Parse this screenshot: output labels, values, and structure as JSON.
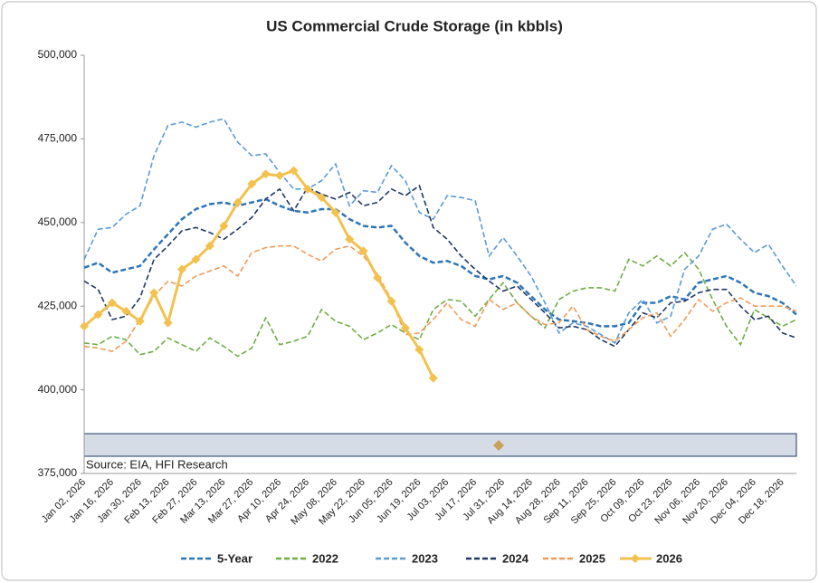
{
  "chart_data": {
    "type": "line",
    "title": "US Commercial Crude Storage (in kbbls)",
    "annotation": "Source: EIA, HFI Research",
    "categories": [
      "Jan 02, 2026",
      null,
      "Jan 16, 2026",
      null,
      "Jan 30, 2026",
      null,
      "Feb 13, 2026",
      null,
      "Feb 27, 2026",
      null,
      "Mar 13, 2026",
      null,
      "Mar 27, 2026",
      null,
      "Apr 10, 2026",
      null,
      "Apr 24, 2026",
      null,
      "May 08, 2026",
      null,
      "May 22, 2026",
      null,
      "Jun 05, 2026",
      null,
      "Jun 19, 2026",
      null,
      "Jul 03, 2026",
      null,
      "Jul 17, 2026",
      null,
      "Jul 31, 2026",
      null,
      "Aug 14, 2026",
      null,
      "Aug 28, 2026",
      null,
      "Sep 11, 2026",
      null,
      "Sep 25, 2026",
      null,
      "Oct 09, 2026",
      null,
      "Oct 23, 2026",
      null,
      "Nov 06, 2026",
      null,
      "Nov 20, 2026",
      null,
      "Dec 04, 2026",
      null,
      "Dec 18, 2026",
      null
    ],
    "ylim": [
      375000,
      500000
    ],
    "yticks": [
      {
        "value": 375000,
        "label": "375,000"
      },
      {
        "value": 400000,
        "label": "400,000"
      },
      {
        "value": 425000,
        "label": "425,000"
      },
      {
        "value": 450000,
        "label": "450,000"
      },
      {
        "value": 475000,
        "label": "475,000"
      },
      {
        "value": 500000,
        "label": "500,000"
      }
    ],
    "series": [
      {
        "name": "5-Year",
        "color": "#2e75b6",
        "dashed": true,
        "values": [
          436500,
          438000,
          435000,
          436000,
          437000,
          442000,
          446500,
          451000,
          454000,
          455500,
          456000,
          455000,
          456000,
          457000,
          455000,
          453500,
          453000,
          454000,
          454000,
          451000,
          449000,
          448500,
          449000,
          444000,
          440000,
          438000,
          438500,
          437000,
          434000,
          433000,
          434000,
          432000,
          428000,
          424000,
          421000,
          420500,
          420000,
          419000,
          419000,
          420000,
          426000,
          426000,
          428000,
          427000,
          432000,
          433000,
          434000,
          432000,
          429000,
          428000,
          426000,
          422500
        ]
      },
      {
        "name": "2022",
        "color": "#70ad47",
        "dashed": true,
        "values": [
          414000,
          413500,
          416000,
          415000,
          410500,
          411500,
          415500,
          413500,
          411500,
          415500,
          413000,
          410000,
          412500,
          421500,
          413500,
          414500,
          416000,
          424000,
          420500,
          419000,
          415000,
          417000,
          419500,
          417000,
          415000,
          424000,
          427000,
          426500,
          422000,
          427000,
          432000,
          426000,
          422000,
          418500,
          427000,
          429500,
          430500,
          430500,
          429500,
          439000,
          437000,
          440000,
          437000,
          441000,
          436000,
          427000,
          419000,
          413500,
          424000,
          421500,
          419000,
          421000
        ]
      },
      {
        "name": "2023",
        "color": "#5b9bd5",
        "dashed": true,
        "values": [
          439000,
          448000,
          448500,
          452500,
          455000,
          470000,
          479000,
          480000,
          478500,
          480000,
          481000,
          474000,
          470000,
          470500,
          465000,
          460000,
          460000,
          462500,
          467500,
          455000,
          459500,
          459000,
          467000,
          462500,
          453000,
          451000,
          458000,
          457500,
          456500,
          440000,
          445500,
          440000,
          434000,
          426000,
          417000,
          420000,
          419000,
          416500,
          414000,
          423000,
          427000,
          420000,
          422000,
          436000,
          440000,
          448000,
          449500,
          445000,
          441000,
          443500,
          437000,
          431000
        ]
      },
      {
        "name": "2024",
        "color": "#1f3864",
        "dashed": true,
        "values": [
          432500,
          430000,
          421000,
          422000,
          427500,
          439000,
          443000,
          447500,
          448500,
          447000,
          445000,
          448000,
          451500,
          457000,
          460000,
          453500,
          460500,
          458500,
          457000,
          459000,
          455000,
          456000,
          460000,
          458000,
          461000,
          448500,
          445000,
          440000,
          436000,
          432500,
          429500,
          431000,
          427000,
          423000,
          418500,
          419000,
          418000,
          415000,
          413000,
          418000,
          423000,
          421500,
          426000,
          426500,
          429000,
          430000,
          430000,
          425000,
          421000,
          422000,
          417000,
          415500
        ]
      },
      {
        "name": "2025",
        "color": "#ed9d5a",
        "dashed": true,
        "values": [
          413000,
          412500,
          411500,
          414500,
          421000,
          428000,
          432500,
          431000,
          434000,
          435500,
          437000,
          434000,
          441000,
          442500,
          443000,
          443000,
          440500,
          438500,
          442000,
          443000,
          440000,
          434500,
          427000,
          416500,
          417000,
          421000,
          426000,
          421000,
          419000,
          427000,
          424000,
          426000,
          422000,
          419500,
          420000,
          425000,
          418000,
          416000,
          414500,
          418000,
          421500,
          423000,
          416000,
          421000,
          427000,
          423500,
          426000,
          427500,
          425000,
          425000,
          425000,
          423500
        ]
      },
      {
        "name": "2026",
        "color": "#f2c14e",
        "dashed": false,
        "markers": true,
        "values": [
          419000,
          422500,
          426000,
          423500,
          420500,
          429000,
          420000,
          436000,
          439000,
          443000,
          449000,
          456000,
          461500,
          464500,
          464000,
          465500,
          460000,
          457500,
          453000,
          445000,
          441500,
          433500,
          426500,
          418500,
          412000,
          403500,
          null,
          null,
          null,
          null,
          null,
          null,
          null,
          null,
          null,
          null,
          null,
          null,
          null,
          null,
          null,
          null,
          null,
          null,
          null,
          null,
          null,
          null,
          null,
          null,
          null,
          null
        ]
      }
    ]
  }
}
